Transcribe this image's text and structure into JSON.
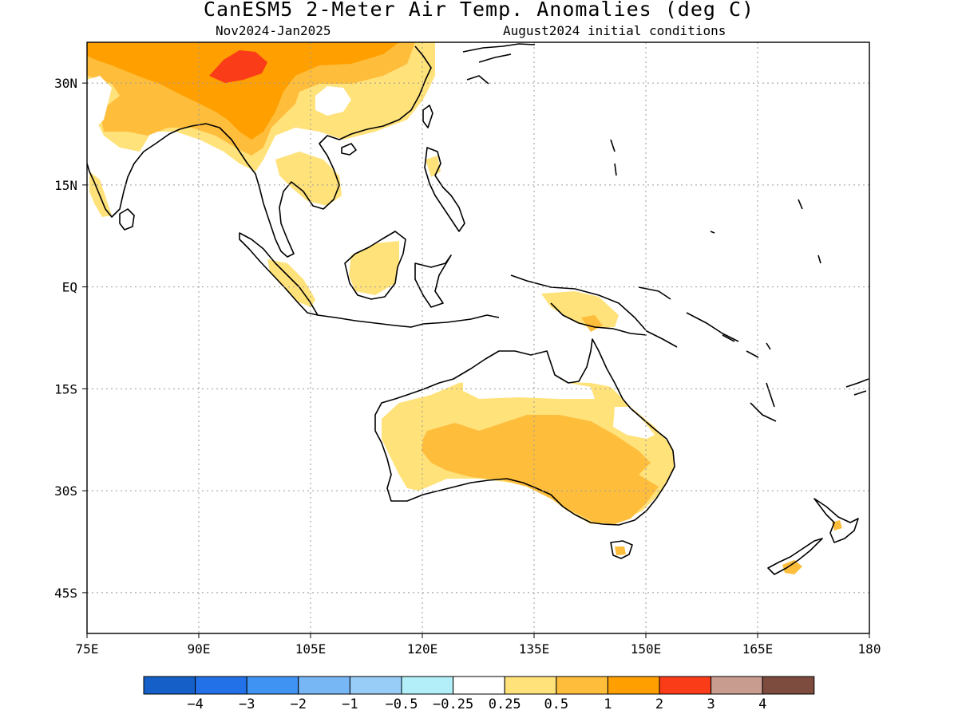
{
  "header": {
    "title": "CanESM5 2-Meter Air Temp. Anomalies (deg C)",
    "period": "Nov2024-Jan2025",
    "init": "August2024 initial conditions"
  },
  "map": {
    "lon_range": [
      75,
      180
    ],
    "lat_range": [
      -51,
      36
    ],
    "x_ticks": [
      {
        "lon": 75,
        "label": "75E"
      },
      {
        "lon": 90,
        "label": "90E"
      },
      {
        "lon": 105,
        "label": "105E"
      },
      {
        "lon": 120,
        "label": "120E"
      },
      {
        "lon": 135,
        "label": "135E"
      },
      {
        "lon": 150,
        "label": "150E"
      },
      {
        "lon": 165,
        "label": "165E"
      },
      {
        "lon": 180,
        "label": "180"
      }
    ],
    "y_ticks": [
      {
        "lat": 30,
        "label": "30N"
      },
      {
        "lat": 15,
        "label": "15N"
      },
      {
        "lat": 0,
        "label": "EQ"
      },
      {
        "lat": -15,
        "label": "15S"
      },
      {
        "lat": -30,
        "label": "30S"
      },
      {
        "lat": -45,
        "label": "45S"
      }
    ],
    "grid": "dotted"
  },
  "colorbar": {
    "colors": [
      "#1560c8",
      "#2271e8",
      "#3f93f2",
      "#78b7f6",
      "#97cdf7",
      "#b2eff8",
      "#ffffff",
      "#ffe27a",
      "#ffbd3c",
      "#ffa000",
      "#fa3c18",
      "#c99c90",
      "#7d4c3e"
    ],
    "labels": [
      "-4",
      "-3",
      "-2",
      "-1",
      "-0.5",
      "-0.25",
      "0.25",
      "0.5",
      "1",
      "2",
      "3",
      "4"
    ]
  },
  "colors": {
    "land_outline": "#000000",
    "anom_0_5": "#ffe27a",
    "anom_1": "#ffbd3c",
    "anom_2": "#ffa000",
    "anom_3": "#fa3c18"
  }
}
